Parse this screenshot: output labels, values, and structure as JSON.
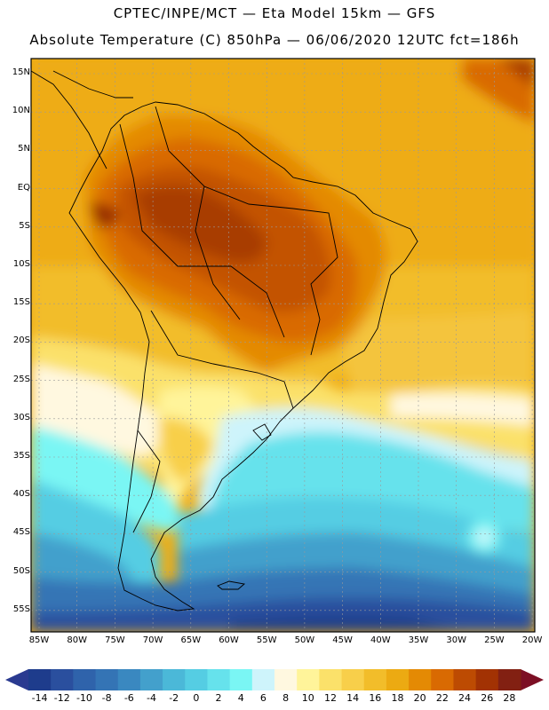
{
  "title": {
    "line1": "CPTEC/INPE/MCT — Eta Model 15km — GFS",
    "line2": "Absolute Temperature (C) 850hPa — 06/06/2020 12UTC fct=186h"
  },
  "map": {
    "lat_labels": [
      "15N",
      "10N",
      "5N",
      "EQ",
      "5S",
      "10S",
      "15S",
      "20S",
      "25S",
      "30S",
      "35S",
      "40S",
      "45S",
      "50S",
      "55S"
    ],
    "lon_labels": [
      "85W",
      "80W",
      "75W",
      "70W",
      "65W",
      "60W",
      "55W",
      "50W",
      "45W",
      "40W",
      "35W",
      "30W",
      "25W",
      "20W"
    ]
  },
  "colorbar": {
    "labels": [
      "-14",
      "-12",
      "-10",
      "-8",
      "-6",
      "-4",
      "-2",
      "0",
      "2",
      "4",
      "6",
      "8",
      "10",
      "12",
      "14",
      "16",
      "18",
      "20",
      "22",
      "24",
      "26",
      "28"
    ],
    "colors": [
      "#1e3c8c",
      "#2a4f9e",
      "#2f63ab",
      "#3474b5",
      "#3a88c0",
      "#43a0cc",
      "#4bb8d8",
      "#55cde3",
      "#66e2ec",
      "#7af6f4",
      "#cef4fb",
      "#fff8e0",
      "#fff49a",
      "#fbe16a",
      "#f8cf4a",
      "#f2bd2a",
      "#ecaa12",
      "#e48a04",
      "#d96a02",
      "#bd4b02",
      "#a23203",
      "#822012"
    ],
    "under_color": "#2a3a90",
    "over_color": "#7c0f24"
  }
}
